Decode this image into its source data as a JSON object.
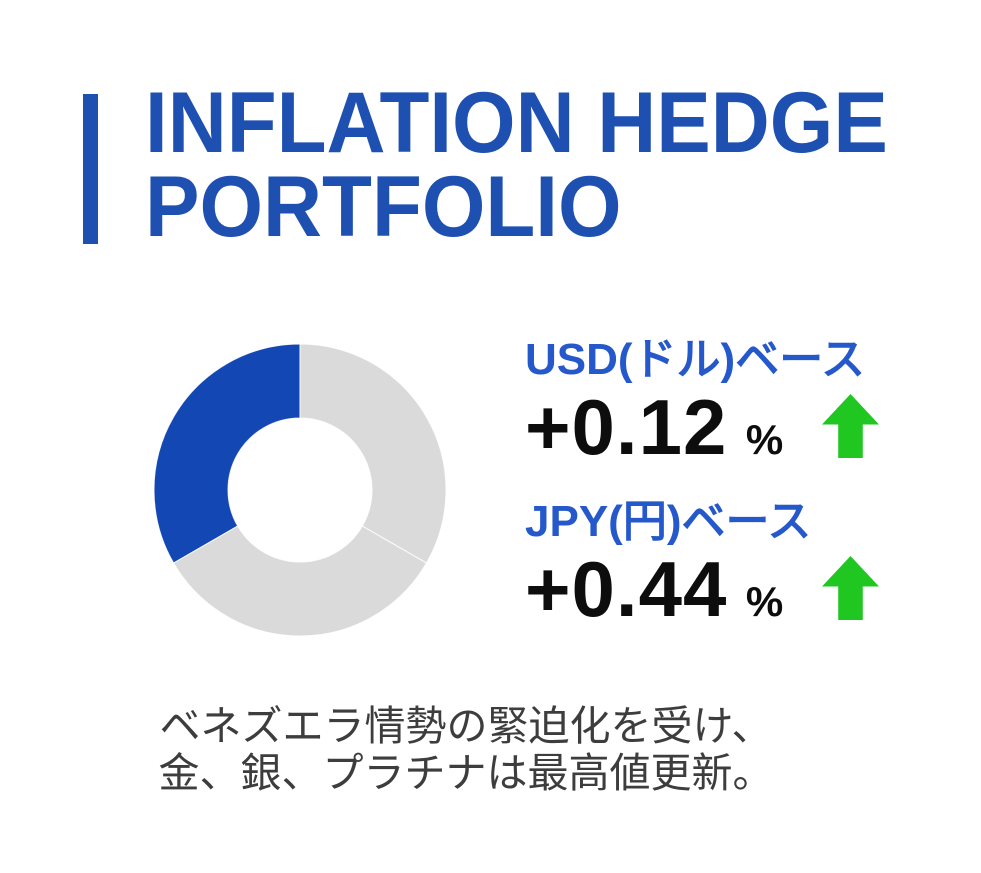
{
  "header": {
    "title_lines": [
      "INFLATION HEDGE",
      "PORTFOLIO"
    ],
    "accent_color": "#1E50B2"
  },
  "chart_data": {
    "type": "donut",
    "title": "",
    "start_angle_deg": 90,
    "direction": "counterclockwise",
    "inner_radius_ratio": 0.49,
    "legend": "none",
    "segments": [
      {
        "id": "highlight-segment",
        "value": 33.34,
        "color": "#1347B4"
      },
      {
        "id": "gray-segment-1",
        "value": 33.33,
        "color": "#DADADA"
      },
      {
        "id": "gray-segment-2",
        "value": 33.33,
        "color": "#DADADA"
      }
    ]
  },
  "stats": [
    {
      "id": "usd",
      "label": "USD(ドル)ベース",
      "label_color": "#2458CB",
      "value": "+0.12",
      "unit": "%",
      "trend": "up",
      "trend_color": "#21C721"
    },
    {
      "id": "jpy",
      "label": "JPY(円)ベース",
      "label_color": "#2458CB",
      "value": "+0.44",
      "unit": "%",
      "trend": "up",
      "trend_color": "#21C721"
    }
  ],
  "note": {
    "line1": "ベネズエラ情勢の緊迫化を受け、",
    "line2": "金、銀、プラチナは最高値更新。",
    "color": "#3D3D3D"
  }
}
